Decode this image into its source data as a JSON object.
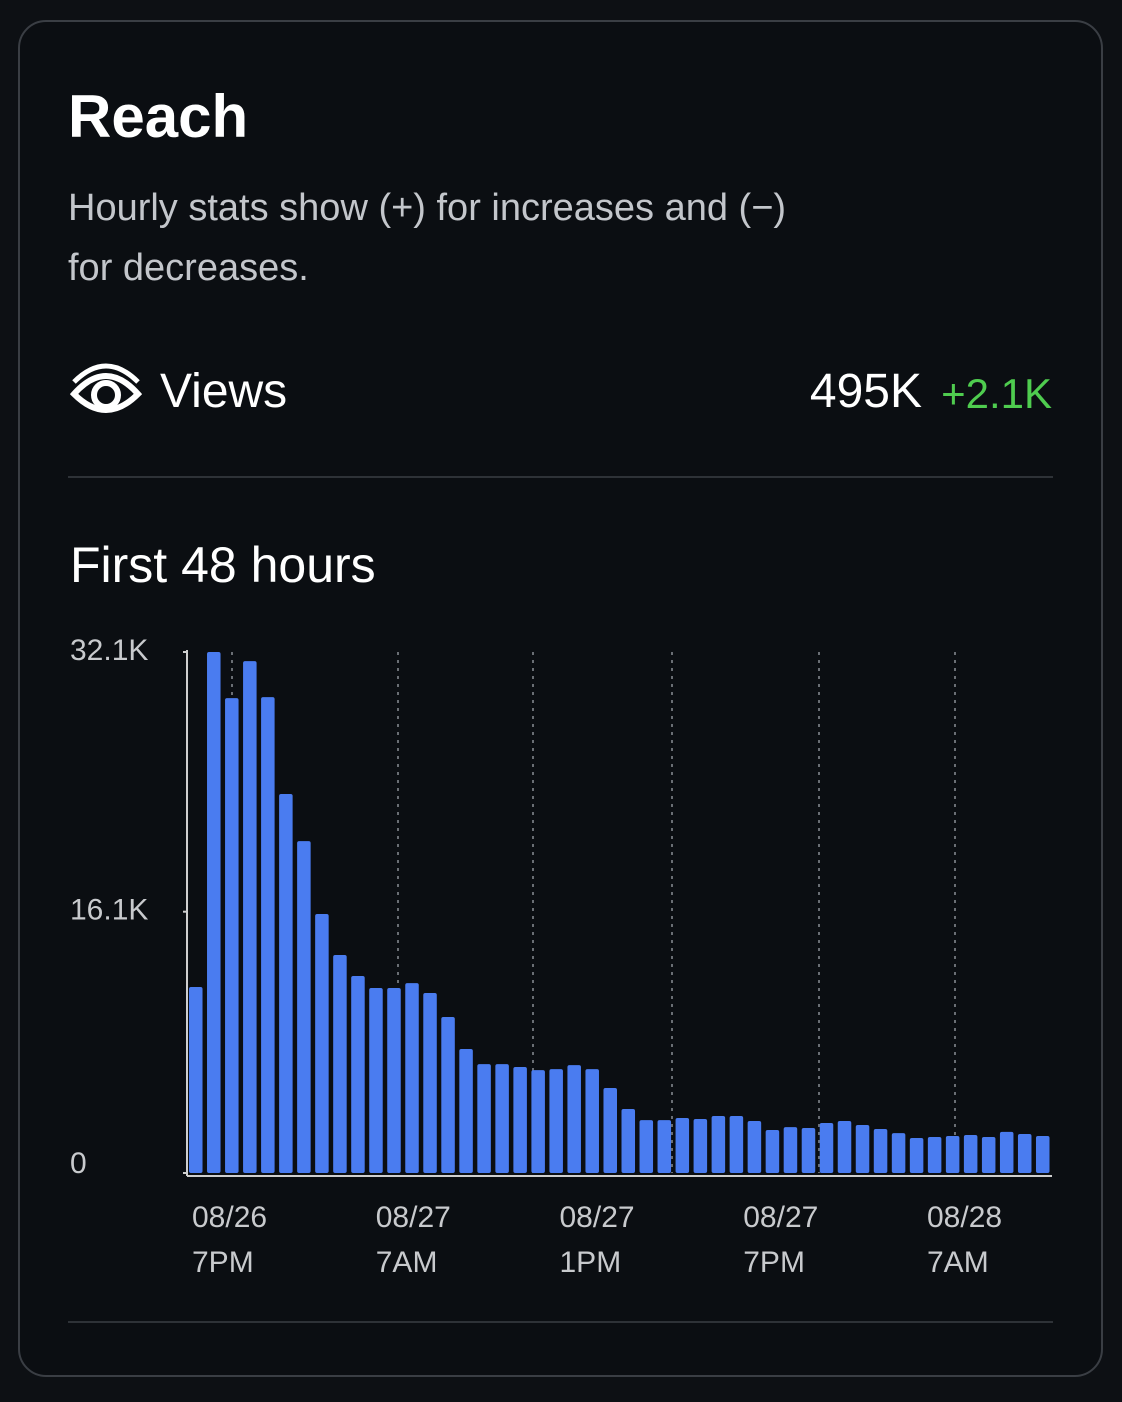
{
  "header": {
    "title": "Reach",
    "subtitle": "Hourly stats show (+) for increases and (−) for decreases."
  },
  "metric": {
    "label": "Views",
    "value": "495K",
    "change": "+2.1K"
  },
  "chart_data": {
    "type": "bar",
    "title": "First 48 hours",
    "color": "#4a7cf0",
    "ylim": [
      0,
      32100
    ],
    "yticks": [
      0,
      {
        "value": 16100,
        "label": "16.1K"
      },
      {
        "value": 32100,
        "label": "32.1K"
      }
    ],
    "x_labels": [
      {
        "date": "08/26",
        "time": "7PM"
      },
      {
        "date": "08/27",
        "time": "7AM"
      },
      {
        "date": "08/27",
        "time": "1PM"
      },
      {
        "date": "08/27",
        "time": "7PM"
      },
      {
        "date": "08/28",
        "time": "7AM"
      }
    ],
    "values": [
      11460,
      32100,
      29260,
      31540,
      29320,
      23350,
      20450,
      15960,
      13430,
      12140,
      11400,
      11400,
      11700,
      11090,
      9610,
      7640,
      6710,
      6710,
      6530,
      6340,
      6400,
      6650,
      6400,
      5240,
      3940,
      3260,
      3260,
      3390,
      3330,
      3510,
      3510,
      3200,
      2650,
      2830,
      2770,
      3080,
      3200,
      2960,
      2710,
      2460,
      2160,
      2220,
      2280,
      2340,
      2220,
      2530,
      2400,
      2280
    ]
  }
}
